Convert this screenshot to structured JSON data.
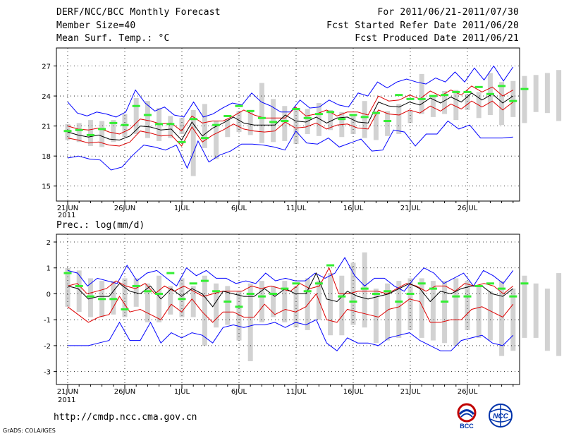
{
  "header": {
    "title": "DERF/NCC/BCC Monthly Forecast",
    "member_size": "Member Size=40",
    "variable1": "Mean Surf. Temp.: °C",
    "forecast_period": "For 2011/06/21-2011/07/30",
    "start_date": "Fcst Started Refer Date 2011/06/20",
    "produced_date": "Fcst Produced Date 2011/06/21"
  },
  "footer": {
    "url": "http://cmdp.ncc.cma.gov.cn",
    "grads_credit": "GrADS: COLA/IGES",
    "logo_bcc": "BCC",
    "logo_ncc": "NCC"
  },
  "colors": {
    "ensemble_max_min": "#0000ff",
    "std_band": "#dd0000",
    "ensemble_mean": "#000000",
    "box_range": "#d2d2d2",
    "observed_mean": "#33ee33",
    "grid": "#000000"
  },
  "chart_data": [
    {
      "type": "line",
      "title": "Mean Surf. Temp.: °C",
      "x_tick_labels": [
        "21JUN",
        "26JUN",
        "1JUL",
        "6JUL",
        "11JUL",
        "16JUL",
        "21JUL",
        "26JUL"
      ],
      "x_year_label": "2011",
      "ylim": [
        13.5,
        28.8
      ],
      "y_ticks": [
        15,
        18,
        21,
        24,
        27
      ],
      "days": 40,
      "series": [
        {
          "name": "max",
          "values": [
            23.4,
            22.3,
            22.0,
            22.4,
            22.2,
            21.9,
            22.4,
            24.6,
            23.3,
            22.5,
            22.9,
            22.1,
            21.9,
            23.4,
            21.9,
            22.2,
            22.8,
            23.3,
            23.1,
            24.3,
            23.4,
            23.0,
            22.4,
            22.4,
            23.6,
            22.8,
            22.9,
            23.6,
            23.1,
            22.9,
            24.3,
            24.0,
            25.4,
            24.8,
            25.4,
            25.7,
            25.4,
            25.2,
            25.8,
            25.4,
            26.4,
            25.4,
            26.8,
            25.6,
            27.0,
            25.5,
            26.9
          ]
        },
        {
          "name": "upper",
          "values": [
            21.0,
            20.7,
            20.6,
            20.8,
            20.4,
            20.2,
            20.7,
            21.7,
            21.5,
            21.2,
            21.3,
            20.5,
            22.0,
            21.3,
            21.5,
            21.5,
            22.0,
            22.6,
            22.1,
            21.8,
            21.8,
            21.8,
            22.9,
            22.0,
            22.2,
            22.6,
            22.0,
            22.4,
            22.4,
            22.1,
            24.0,
            23.5,
            23.6,
            24.1,
            23.7,
            24.5,
            24.0,
            24.6,
            24.1,
            25.0,
            24.4,
            24.9,
            24.0,
            24.6
          ]
        },
        {
          "name": "mean",
          "values": [
            20.4,
            20.1,
            19.9,
            20.1,
            19.7,
            19.6,
            20.0,
            21.0,
            20.9,
            20.6,
            20.7,
            19.6,
            21.4,
            20.0,
            20.8,
            21.3,
            21.9,
            21.3,
            21.1,
            21.1,
            21.1,
            22.1,
            21.5,
            21.4,
            21.9,
            21.3,
            21.8,
            21.9,
            21.4,
            21.3,
            23.4,
            23.0,
            22.9,
            23.4,
            23.1,
            23.8,
            23.3,
            23.9,
            23.4,
            24.3,
            23.6,
            24.2,
            23.3,
            24.0
          ]
        },
        {
          "name": "lower",
          "values": [
            19.8,
            19.6,
            19.3,
            19.4,
            19.1,
            19.0,
            19.4,
            20.5,
            20.3,
            20.0,
            20.1,
            19.0,
            20.9,
            19.4,
            20.1,
            20.6,
            21.2,
            20.7,
            20.5,
            20.4,
            20.5,
            21.4,
            20.8,
            20.9,
            21.3,
            20.7,
            21.1,
            21.2,
            20.8,
            20.7,
            22.6,
            22.2,
            22.1,
            22.6,
            22.3,
            23.0,
            22.5,
            23.2,
            22.7,
            23.5,
            22.9,
            23.5,
            22.6,
            23.4
          ]
        },
        {
          "name": "min",
          "values": [
            17.8,
            18.0,
            17.7,
            17.6,
            16.6,
            16.9,
            18.1,
            19.1,
            18.9,
            18.6,
            19.1,
            16.8,
            19.5,
            17.4,
            18.1,
            18.5,
            19.2,
            19.2,
            19.1,
            18.9,
            18.6,
            20.5,
            19.3,
            19.2,
            19.8,
            18.9,
            19.3,
            19.7,
            18.5,
            18.6,
            20.6,
            20.4,
            19.0,
            20.2,
            20.2,
            21.5,
            20.7,
            21.1,
            19.8,
            19.8,
            19.8,
            19.9
          ]
        },
        {
          "name": "box_high",
          "values": [
            21.2,
            21.3,
            21.6,
            21.5,
            21.6,
            22.2,
            23.8,
            23.5,
            22.8,
            22.0,
            21.8,
            22.6,
            23.2,
            21.5,
            21.7,
            22.5,
            22.6,
            25.3,
            23.7,
            23.0,
            22.6,
            22.7,
            23.3,
            22.6,
            22.4,
            22.1,
            23.5,
            22.5,
            22.5,
            23.2,
            22.5,
            26.2,
            24.0,
            24.5,
            24.6,
            24.2,
            24.4,
            26.3,
            25.4,
            25.5,
            26.0,
            26.1,
            26.3,
            26.6,
            25.6,
            26.0,
            25.4
          ]
        },
        {
          "name": "box_low",
          "values": [
            19.6,
            19.4,
            19.0,
            18.9,
            19.4,
            19.9,
            20.2,
            19.8,
            19.5,
            19.8,
            20.2,
            16.0,
            18.8,
            17.7,
            19.9,
            20.4,
            20.1,
            19.3,
            19.4,
            19.5,
            19.2,
            20.2,
            20.0,
            20.6,
            19.9,
            20.2,
            19.8,
            19.6,
            20.0,
            20.2,
            21.3,
            22.2,
            21.9,
            22.2,
            21.6,
            22.6,
            21.8,
            22.1,
            21.1,
            21.9,
            21.3,
            22.4,
            22.3,
            21.5
          ]
        },
        {
          "name": "observed",
          "values": [
            20.5,
            20.6,
            20.1,
            20.7,
            21.3,
            21.1,
            23.0,
            22.1,
            21.2,
            21.2,
            19.4,
            21.7,
            19.8,
            21.1,
            22.0,
            23.0,
            22.5,
            21.8,
            21.4,
            21.5,
            22.7,
            21.8,
            22.2,
            22.4,
            21.7,
            22.1,
            21.9,
            22.3,
            21.5,
            24.1,
            23.7,
            23.7,
            24.0,
            24.1,
            24.4,
            24.4,
            24.9,
            24.2,
            25.0,
            23.5,
            24.7
          ]
        }
      ]
    },
    {
      "type": "line",
      "title": "Prec.: log(mm/d)",
      "x_tick_labels": [
        "21JUN",
        "26JUN",
        "1JUL",
        "6JUL",
        "11JUL",
        "16JUL",
        "21JUL",
        "26JUL"
      ],
      "x_year_label": "2011",
      "ylim": [
        -3.5,
        2.3
      ],
      "y_ticks": [
        -3,
        -2,
        -1,
        0,
        1,
        2
      ],
      "days": 40,
      "series": [
        {
          "name": "max",
          "values": [
            0.9,
            0.8,
            0.3,
            0.6,
            0.5,
            0.4,
            1.1,
            0.5,
            0.8,
            0.9,
            0.6,
            0.3,
            1.0,
            0.7,
            0.9,
            0.6,
            0.6,
            0.4,
            0.5,
            0.4,
            0.8,
            0.5,
            0.6,
            0.5,
            0.5,
            0.8,
            0.6,
            0.8,
            1.4,
            0.7,
            0.3,
            0.6,
            0.6,
            0.3,
            0.1,
            0.6,
            1.0,
            0.8,
            0.4,
            0.6,
            0.8,
            0.3,
            0.9,
            0.7,
            0.4,
            0.9
          ]
        },
        {
          "name": "upper",
          "values": [
            0.3,
            0.4,
            0.0,
            0.1,
            0.2,
            0.5,
            0.3,
            0.2,
            0.4,
            0.0,
            0.3,
            0.1,
            0.3,
            0.1,
            -0.1,
            0.0,
            0.1,
            0.1,
            0.1,
            0.3,
            0.2,
            0.3,
            0.2,
            0.1,
            0.4,
            0.2,
            0.3,
            1.0,
            0.0,
            0.0,
            0.1,
            0.1,
            0.1,
            0.0,
            0.2,
            0.4,
            0.3,
            0.1,
            0.3,
            0.3,
            0.1,
            0.4,
            0.3,
            0.4,
            0.3,
            0.0,
            0.3
          ]
        },
        {
          "name": "mean",
          "values": [
            0.3,
            0.2,
            -0.2,
            -0.1,
            -0.1,
            0.4,
            0.1,
            0.0,
            0.3,
            -0.2,
            0.2,
            -0.1,
            0.2,
            0.0,
            -0.5,
            0.1,
            0.0,
            -0.1,
            -0.1,
            0.2,
            -0.1,
            0.2,
            0.0,
            0.0,
            0.8,
            -0.2,
            -0.3,
            0.1,
            -0.1,
            -0.2,
            -0.1,
            0.0,
            0.2,
            0.4,
            0.2,
            -0.3,
            0.1,
            0.0,
            0.2,
            0.3,
            0.3,
            0.0,
            -0.1,
            0.2
          ]
        },
        {
          "name": "lower",
          "values": [
            -0.5,
            -0.8,
            -1.1,
            -0.9,
            -0.8,
            -0.1,
            -0.7,
            -0.6,
            -0.8,
            -1.0,
            -0.4,
            -0.7,
            -0.2,
            -0.7,
            -1.1,
            -0.7,
            -0.7,
            -0.9,
            -0.9,
            -0.4,
            -0.8,
            -0.6,
            -0.7,
            -0.5,
            0.0,
            -1.0,
            -1.1,
            -0.6,
            -0.7,
            -0.8,
            -0.9,
            -0.6,
            -0.5,
            -0.2,
            -0.3,
            -1.1,
            -1.1,
            -1.0,
            -1.0,
            -0.6,
            -0.5,
            -0.7,
            -0.9,
            -0.4
          ]
        },
        {
          "name": "min",
          "values": [
            -2.0,
            -2.0,
            -2.0,
            -1.9,
            -1.8,
            -1.1,
            -1.8,
            -1.8,
            -1.1,
            -1.9,
            -1.5,
            -1.7,
            -1.5,
            -1.6,
            -1.9,
            -1.3,
            -1.2,
            -1.3,
            -1.2,
            -1.2,
            -1.1,
            -1.3,
            -1.1,
            -1.2,
            -1.0,
            -1.9,
            -2.2,
            -1.7,
            -1.9,
            -1.9,
            -2.0,
            -1.7,
            -1.6,
            -1.5,
            -1.8,
            -2.0,
            -2.2,
            -2.2,
            -1.8,
            -1.7,
            -1.6,
            -1.9,
            -2.0,
            -1.6
          ]
        },
        {
          "name": "box_high",
          "values": [
            1.0,
            0.9,
            0.6,
            0.5,
            0.5,
            0.6,
            0.6,
            0.4,
            0.7,
            0.3,
            0.6,
            0.3,
            0.7,
            0.4,
            0.3,
            0.1,
            0.4,
            0.5,
            0.3,
            0.5,
            0.3,
            0.6,
            0.5,
            0.8,
            0.7,
            1.2,
            1.6,
            0.2,
            0.4,
            0.5,
            0.6,
            0.6,
            0.5,
            0.5,
            0.6,
            0.5,
            0.3,
            0.1,
            0.5,
            0.2,
            0.7,
            0.4,
            0.2,
            0.8,
            0.9,
            0.9
          ]
        },
        {
          "name": "box_low",
          "values": [
            -0.5,
            -0.7,
            -0.9,
            -0.9,
            -0.8,
            -0.9,
            -0.5,
            -1.1,
            -1.1,
            -0.8,
            -0.9,
            -0.9,
            -2.0,
            -1.3,
            -1.2,
            -1.8,
            -2.6,
            -1.1,
            -0.9,
            -1.1,
            -1.3,
            -1.4,
            -1.0,
            -1.6,
            -1.6,
            -1.2,
            -1.3,
            -1.9,
            -1.8,
            -1.7,
            -1.4,
            -1.7,
            -1.8,
            -1.9,
            -2.0,
            -1.4,
            -1.7,
            -1.8,
            -2.4,
            -2.2,
            -1.7,
            -1.7,
            -2.2,
            -2.4,
            -2.4
          ]
        },
        {
          "name": "observed",
          "values": [
            0.8,
            0.3,
            -0.1,
            -0.2,
            -0.2,
            -0.6,
            0.3,
            0.1,
            0.0,
            0.8,
            -0.2,
            0.4,
            0.5,
            0.1,
            -0.3,
            -0.5,
            0.0,
            -0.1,
            0.0,
            0.2,
            0.4,
            0.1,
            0.4,
            1.1,
            -0.1,
            -0.3,
            0.2,
            0.0,
            0.1,
            -0.3,
            0.0,
            0.4,
            0.2,
            -0.3,
            -0.1,
            -0.1,
            0.3,
            0.4,
            0.2,
            -0.1,
            0.4
          ]
        }
      ]
    }
  ]
}
